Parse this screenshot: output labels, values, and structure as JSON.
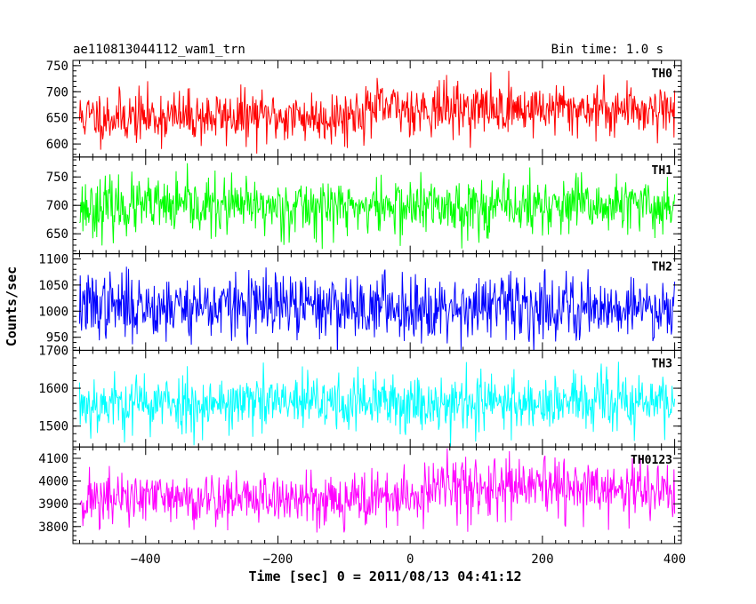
{
  "chart_data": {
    "type": "line",
    "title": "ae110813044112_wam1_trn",
    "bin_time_label": "Bin time: 1.0 s",
    "xlabel": "Time [sec] 0 = 2011/08/13 04:41:12",
    "ylabel": "Counts/sec",
    "xlim": [
      -510,
      410
    ],
    "x_step": 1,
    "x_ticks": [
      -400,
      -200,
      0,
      200,
      400
    ],
    "grid": false,
    "panels": [
      {
        "name": "TH0",
        "color": "#ff0000",
        "ylim": [
          575,
          760
        ],
        "y_ticks": [
          600,
          650,
          700,
          750
        ],
        "baseline": [
          [
            -500,
            652
          ],
          [
            -100,
            652
          ],
          [
            -60,
            668
          ],
          [
            400,
            667
          ]
        ],
        "noise_sd": 25,
        "seed": 11
      },
      {
        "name": "TH1",
        "color": "#00ff00",
        "ylim": [
          615,
          785
        ],
        "y_ticks": [
          650,
          700,
          750
        ],
        "baseline": [
          [
            -500,
            697
          ],
          [
            400,
            698
          ]
        ],
        "noise_sd": 25,
        "seed": 23
      },
      {
        "name": "TH2",
        "color": "#0000ff",
        "ylim": [
          925,
          1110
        ],
        "y_ticks": [
          950,
          1000,
          1050,
          1100
        ],
        "baseline": [
          [
            -500,
            1010
          ],
          [
            400,
            1008
          ]
        ],
        "noise_sd": 31,
        "seed": 37
      },
      {
        "name": "TH3",
        "color": "#00ffff",
        "ylim": [
          1445,
          1700
        ],
        "y_ticks": [
          1500,
          1600,
          1700
        ],
        "baseline": [
          [
            -500,
            1560
          ],
          [
            400,
            1563
          ]
        ],
        "noise_sd": 39,
        "seed": 53
      },
      {
        "name": "TH0123",
        "color": "#ff00ff",
        "ylim": [
          3725,
          4150
        ],
        "y_ticks": [
          3800,
          3900,
          4000,
          4100
        ],
        "baseline": [
          [
            -500,
            3920
          ],
          [
            0,
            3925
          ],
          [
            50,
            3975
          ],
          [
            400,
            3955
          ]
        ],
        "noise_sd": 62,
        "seed": 71
      }
    ]
  }
}
